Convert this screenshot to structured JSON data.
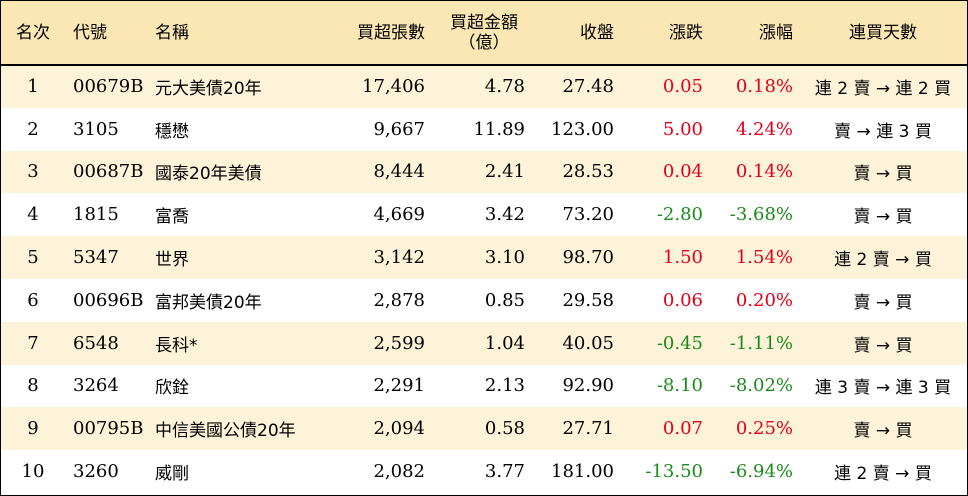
{
  "headers": {
    "rank": "名次",
    "code": "代號",
    "name": "名稱",
    "net_volume": "買超張數",
    "net_amount_line1": "買超金額",
    "net_amount_line2": "（億）",
    "close": "收盤",
    "change": "漲跌",
    "change_pct": "漲幅",
    "consecutive_days": "連買天數"
  },
  "colors": {
    "header_bg": "#fbe7b3",
    "odd_row_bg": "#fdf3d8",
    "up": "#e2001a",
    "down": "#1d8a1d"
  },
  "rows": [
    {
      "rank": "1",
      "code": "00679B",
      "name": "元大美債20年",
      "volume": "17,406",
      "amount": "4.78",
      "close": "27.48",
      "change": "0.05",
      "pct": "0.18%",
      "dir": "up",
      "days": "連 2 賣 → 連 2 買"
    },
    {
      "rank": "2",
      "code": "3105",
      "name": "穩懋",
      "volume": "9,667",
      "amount": "11.89",
      "close": "123.00",
      "change": "5.00",
      "pct": "4.24%",
      "dir": "up",
      "days": "賣 → 連 3 買"
    },
    {
      "rank": "3",
      "code": "00687B",
      "name": "國泰20年美債",
      "volume": "8,444",
      "amount": "2.41",
      "close": "28.53",
      "change": "0.04",
      "pct": "0.14%",
      "dir": "up",
      "days": "賣 → 買"
    },
    {
      "rank": "4",
      "code": "1815",
      "name": "富喬",
      "volume": "4,669",
      "amount": "3.42",
      "close": "73.20",
      "change": "-2.80",
      "pct": "-3.68%",
      "dir": "down",
      "days": "賣 → 買"
    },
    {
      "rank": "5",
      "code": "5347",
      "name": "世界",
      "volume": "3,142",
      "amount": "3.10",
      "close": "98.70",
      "change": "1.50",
      "pct": "1.54%",
      "dir": "up",
      "days": "連 2 賣 → 買"
    },
    {
      "rank": "6",
      "code": "00696B",
      "name": "富邦美債20年",
      "volume": "2,878",
      "amount": "0.85",
      "close": "29.58",
      "change": "0.06",
      "pct": "0.20%",
      "dir": "up",
      "days": "賣 → 買"
    },
    {
      "rank": "7",
      "code": "6548",
      "name": "長科*",
      "volume": "2,599",
      "amount": "1.04",
      "close": "40.05",
      "change": "-0.45",
      "pct": "-1.11%",
      "dir": "down",
      "days": "賣 → 買"
    },
    {
      "rank": "8",
      "code": "3264",
      "name": "欣銓",
      "volume": "2,291",
      "amount": "2.13",
      "close": "92.90",
      "change": "-8.10",
      "pct": "-8.02%",
      "dir": "down",
      "days": "連 3 賣 → 連 3 買"
    },
    {
      "rank": "9",
      "code": "00795B",
      "name": "中信美國公債20年",
      "volume": "2,094",
      "amount": "0.58",
      "close": "27.71",
      "change": "0.07",
      "pct": "0.25%",
      "dir": "up",
      "days": "賣 → 買"
    },
    {
      "rank": "10",
      "code": "3260",
      "name": "威剛",
      "volume": "2,082",
      "amount": "3.77",
      "close": "181.00",
      "change": "-13.50",
      "pct": "-6.94%",
      "dir": "down",
      "days": "連 2 賣 → 買"
    }
  ]
}
